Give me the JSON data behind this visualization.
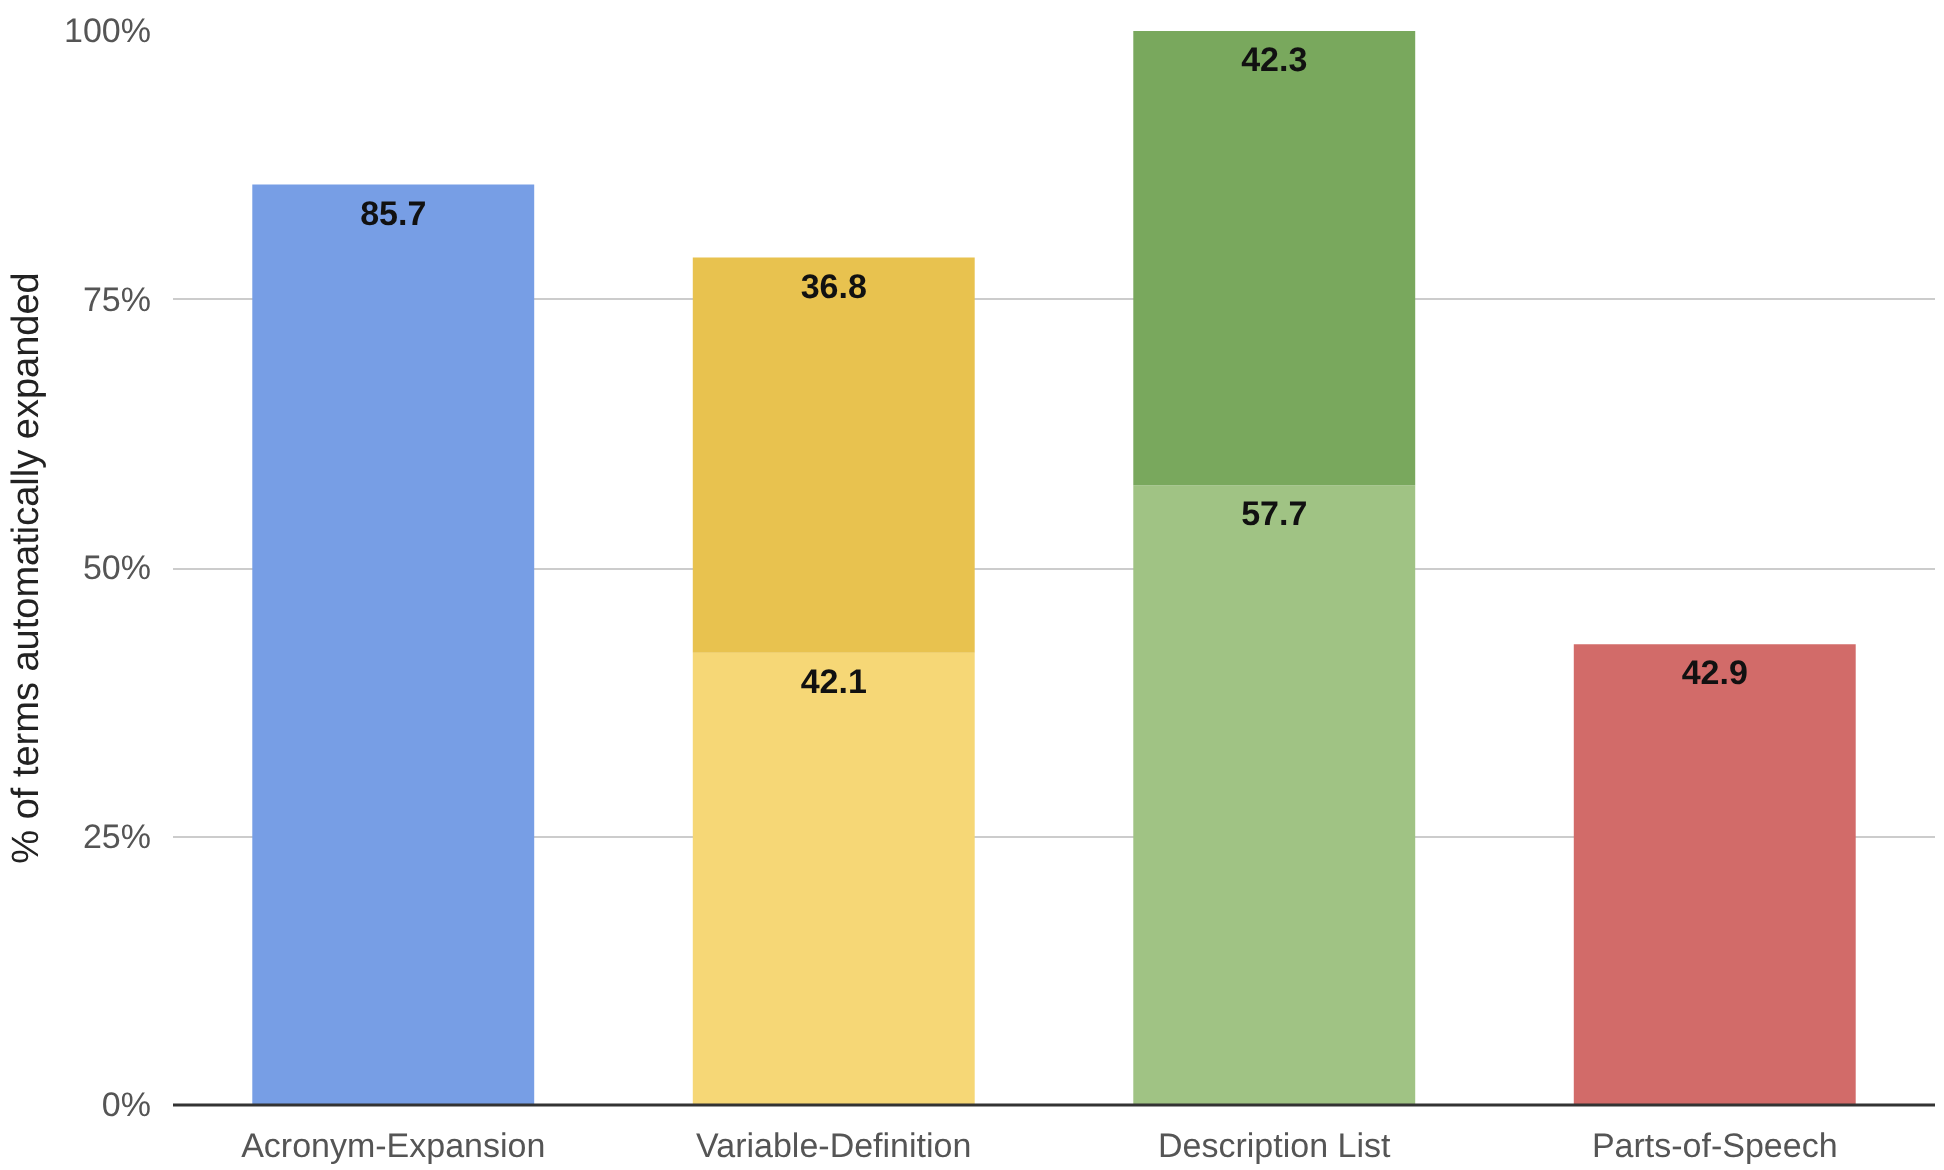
{
  "chart_data": {
    "type": "bar",
    "stacked": true,
    "ylabel": "% of terms automatically expanded",
    "categories": [
      "Acronym-Expansion",
      "Variable-Definition",
      "Description List",
      "Parts-of-Speech"
    ],
    "series": [
      {
        "colors": [
          "#779ee5",
          "#f6d776",
          "#a0c384",
          "#d26b69"
        ],
        "values": [
          85.7,
          42.1,
          57.7,
          42.9
        ]
      },
      {
        "colors": [
          "#e8c24f",
          "#e8c24f",
          "#79a85d",
          "#79a85d"
        ],
        "values": [
          null,
          36.8,
          42.3,
          null
        ]
      }
    ],
    "ylim": [
      0,
      100
    ],
    "yticks": [
      {
        "value": 0,
        "label": "0%"
      },
      {
        "value": 25,
        "label": "25%"
      },
      {
        "value": 50,
        "label": "50%"
      },
      {
        "value": 75,
        "label": "75%"
      },
      {
        "value": 100,
        "label": "100%"
      }
    ],
    "grid": "y",
    "data_labels": true
  }
}
